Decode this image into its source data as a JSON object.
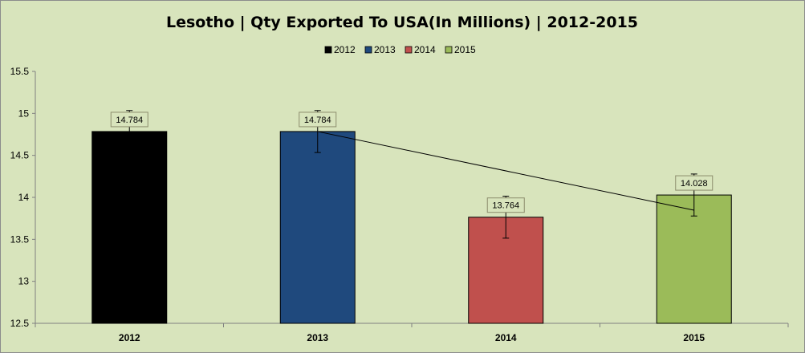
{
  "chart_data": {
    "type": "bar",
    "title": "Lesotho | Qty Exported To USA(In Millions) | 2012-2015",
    "xlabel": "",
    "ylabel": "",
    "categories": [
      "2012",
      "2013",
      "2014",
      "2015"
    ],
    "values": [
      14.784,
      14.784,
      13.764,
      14.028
    ],
    "data_labels": [
      "14.784",
      "14.784",
      "13.764",
      "14.028"
    ],
    "colors": [
      "#000000",
      "#1f497d",
      "#c0504d",
      "#9bbb59"
    ],
    "legend": {
      "position": "top",
      "entries": [
        "2012",
        "2013",
        "2014",
        "2015"
      ]
    },
    "error_bars": {
      "plus": 0.25,
      "minus": 0.25
    },
    "trendline": {
      "type": "linear"
    },
    "ylim": [
      12.5,
      15.5
    ],
    "yticks": [
      "12.5",
      "13",
      "13.5",
      "14",
      "14.5",
      "15",
      "15.5"
    ],
    "grid": false,
    "background": "#d8e4bc"
  }
}
